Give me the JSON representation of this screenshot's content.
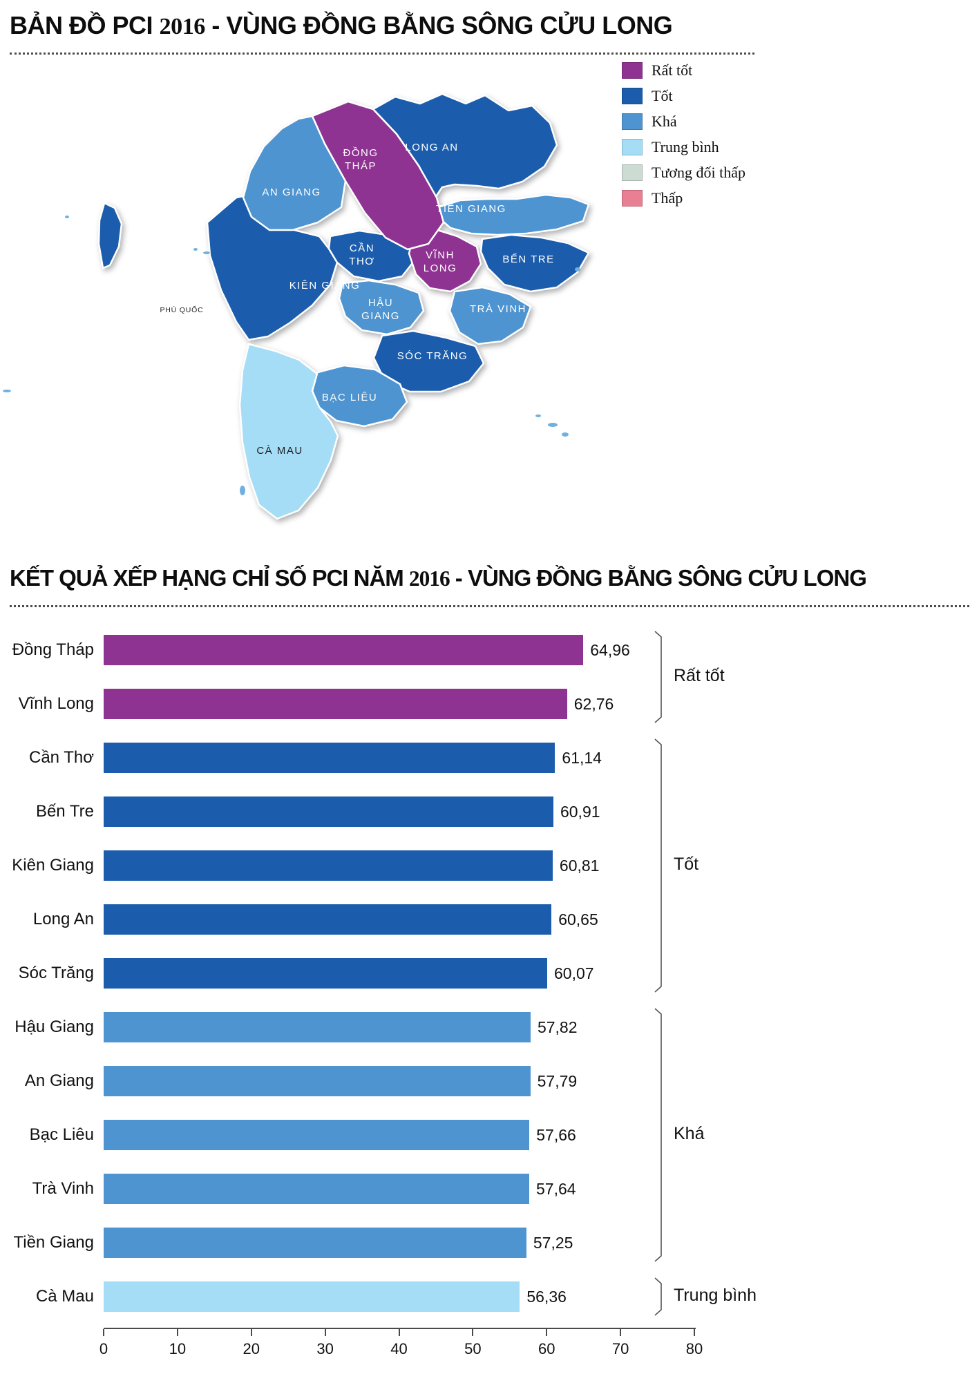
{
  "titles": {
    "map_title": {
      "p1": "BẢN ĐỒ PCI ",
      "year": "2016",
      "p2": " - VÙNG ĐỒNG BẰNG SÔNG CỬU LONG"
    },
    "chart_title": {
      "p1": "KẾT QUẢ XẾP HẠNG CHỈ SỐ PCI NĂM ",
      "year": "2016",
      "p2": " - VÙNG ĐỒNG BẰNG SÔNG CỬU LONG"
    }
  },
  "colors": {
    "rat_tot": "#8f3392",
    "tot": "#1b5dac",
    "kha": "#4e94d0",
    "trung_binh": "#a5ddf7",
    "tuong_doi_thap": "#ccdcd3",
    "thap": "#e87f93",
    "islet": "#6fb0e0"
  },
  "legend": {
    "items": [
      {
        "label": "Rất tốt",
        "color_key": "rat_tot"
      },
      {
        "label": "Tốt",
        "color_key": "tot"
      },
      {
        "label": "Khá",
        "color_key": "kha"
      },
      {
        "label": "Trung bình",
        "color_key": "trung_binh"
      },
      {
        "label": "Tương đối thấp",
        "color_key": "tuong_doi_thap"
      },
      {
        "label": "Thấp",
        "color_key": "thap"
      }
    ]
  },
  "map": {
    "provinces": [
      {
        "id": "kien_giang",
        "name": "Kiên Giang",
        "map_label": [
          "KIÊN GIANG"
        ],
        "rating": "tot"
      },
      {
        "id": "an_giang",
        "name": "An Giang",
        "map_label": [
          "AN GIANG"
        ],
        "rating": "kha"
      },
      {
        "id": "long_an",
        "name": "Long An",
        "map_label": [
          "LONG AN"
        ],
        "rating": "tot"
      },
      {
        "id": "tien_giang",
        "name": "Tiền Giang",
        "map_label": [
          "TIỀN GIANG"
        ],
        "rating": "kha"
      },
      {
        "id": "ben_tre",
        "name": "Bến Tre",
        "map_label": [
          "BẾN TRE"
        ],
        "rating": "tot"
      },
      {
        "id": "tra_vinh",
        "name": "Trà Vinh",
        "map_label": [
          "TRÀ VINH"
        ],
        "rating": "kha"
      },
      {
        "id": "soc_trang",
        "name": "Sóc Trăng",
        "map_label": [
          "SÓC TRĂNG"
        ],
        "rating": "tot"
      },
      {
        "id": "bac_lieu",
        "name": "Bạc Liêu",
        "map_label": [
          "BẠC LIÊU"
        ],
        "rating": "kha"
      },
      {
        "id": "ca_mau",
        "name": "Cà Mau",
        "map_label": [
          "CÀ MAU"
        ],
        "rating": "trung_binh"
      },
      {
        "id": "hau_giang",
        "name": "Hậu Giang",
        "map_label": [
          "HẬU",
          "GIANG"
        ],
        "rating": "kha"
      },
      {
        "id": "can_tho",
        "name": "Cần Thơ",
        "map_label": [
          "CẦN",
          "THƠ"
        ],
        "rating": "tot"
      },
      {
        "id": "vinh_long",
        "name": "Vĩnh Long",
        "map_label": [
          "VĨNH",
          "LONG"
        ],
        "rating": "rat_tot"
      },
      {
        "id": "dong_thap",
        "name": "Đồng Tháp",
        "map_label": [
          "ĐỒNG",
          "THÁP"
        ],
        "rating": "rat_tot"
      },
      {
        "id": "phu_quoc",
        "name": "Phú Quốc",
        "map_label": [
          "PHÚ QUỐC"
        ],
        "rating": "tot"
      }
    ]
  },
  "chart_data": {
    "type": "bar",
    "orientation": "horizontal",
    "title": "KẾT QUẢ XẾP HẠNG CHỈ SỐ PCI NĂM 2016 - VÙNG ĐỒNG BẰNG SÔNG CỬU LONG",
    "xlim": [
      0,
      80
    ],
    "xticks": [
      0,
      10,
      20,
      30,
      40,
      50,
      60,
      70,
      80
    ],
    "items": [
      {
        "label": "Đồng Tháp",
        "value": 64.96,
        "display": "64,96",
        "rating": "rat_tot"
      },
      {
        "label": "Vĩnh Long",
        "value": 62.76,
        "display": "62,76",
        "rating": "rat_tot"
      },
      {
        "label": "Cần Thơ",
        "value": 61.14,
        "display": "61,14",
        "rating": "tot"
      },
      {
        "label": "Bến Tre",
        "value": 60.91,
        "display": "60,91",
        "rating": "tot"
      },
      {
        "label": "Kiên Giang",
        "value": 60.81,
        "display": "60,81",
        "rating": "tot"
      },
      {
        "label": "Long An",
        "value": 60.65,
        "display": "60,65",
        "rating": "tot"
      },
      {
        "label": "Sóc Trăng",
        "value": 60.07,
        "display": "60,07",
        "rating": "tot"
      },
      {
        "label": "Hậu Giang",
        "value": 57.82,
        "display": "57,82",
        "rating": "kha"
      },
      {
        "label": "An Giang",
        "value": 57.79,
        "display": "57,79",
        "rating": "kha"
      },
      {
        "label": "Bạc Liêu",
        "value": 57.66,
        "display": "57,66",
        "rating": "kha"
      },
      {
        "label": "Trà Vinh",
        "value": 57.64,
        "display": "57,64",
        "rating": "kha"
      },
      {
        "label": "Tiền Giang",
        "value": 57.25,
        "display": "57,25",
        "rating": "kha"
      },
      {
        "label": "Cà Mau",
        "value": 56.36,
        "display": "56,36",
        "rating": "trung_binh"
      }
    ],
    "groups": [
      {
        "label": "Rất tốt",
        "start": 0,
        "end": 1
      },
      {
        "label": "Tốt",
        "start": 2,
        "end": 6
      },
      {
        "label": "Khá",
        "start": 7,
        "end": 11
      },
      {
        "label": "Trung bình",
        "start": 12,
        "end": 12
      }
    ]
  }
}
